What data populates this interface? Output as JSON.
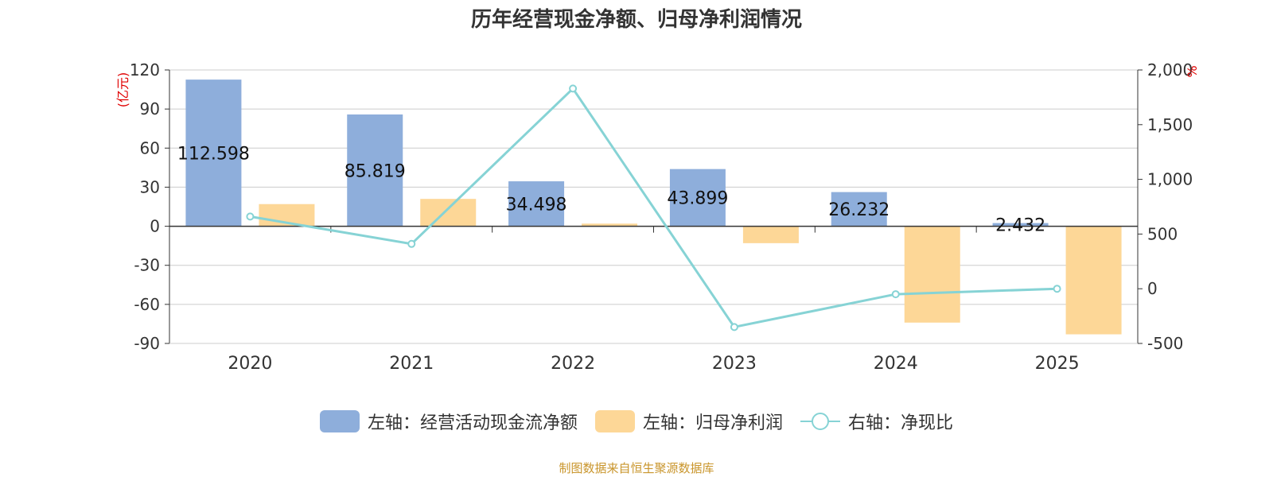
{
  "title": "历年经营现金净额、归母净利润情况",
  "source": "制图数据来自恒生聚源数据库",
  "colors": {
    "cash": "#8eaedb",
    "profit": "#fdd797",
    "ratio": "#86d3d5",
    "unit": "#e00000",
    "grid": "#cccccc",
    "axis": "#333333"
  },
  "legend": [
    {
      "label": "左轴：经营活动现金流净额",
      "icon": "bar-swatch",
      "color": "#8eaedb"
    },
    {
      "label": "左轴：归母净利润",
      "icon": "bar-swatch",
      "color": "#fdd797"
    },
    {
      "label": "右轴：净现比",
      "icon": "line-circle-swatch",
      "color": "#86d3d5"
    }
  ],
  "chart_data": {
    "type": "bar",
    "categories": [
      "2020",
      "2021",
      "2022",
      "2023",
      "2024",
      "2025"
    ],
    "left_axis": {
      "unit": "(亿元)",
      "ylim": [
        -90,
        120
      ],
      "ticks": [
        "120",
        "90",
        "60",
        "30",
        "0",
        "-30",
        "-60",
        "-90"
      ]
    },
    "right_axis": {
      "unit": "%",
      "ylim": [
        -500,
        2000
      ],
      "ticks": [
        "2,000",
        "1,500",
        "1,000",
        "500",
        "0",
        "-500"
      ]
    },
    "series": [
      {
        "name": "左轴：经营活动现金流净额",
        "type": "bar",
        "axis": "left",
        "values": [
          112.598,
          85.819,
          34.498,
          43.899,
          26.232,
          2.432
        ],
        "labels": [
          "112.598",
          "85.819",
          "34.498",
          "43.899",
          "26.232",
          "2.432"
        ]
      },
      {
        "name": "左轴：归母净利润",
        "type": "bar",
        "axis": "left",
        "values": [
          17,
          21,
          2,
          -13,
          -74,
          -83
        ]
      },
      {
        "name": "右轴：净现比",
        "type": "line",
        "axis": "right",
        "values": [
          660,
          410,
          1830,
          -350,
          -50,
          0
        ]
      }
    ],
    "grid": true,
    "legend_position": "bottom"
  }
}
